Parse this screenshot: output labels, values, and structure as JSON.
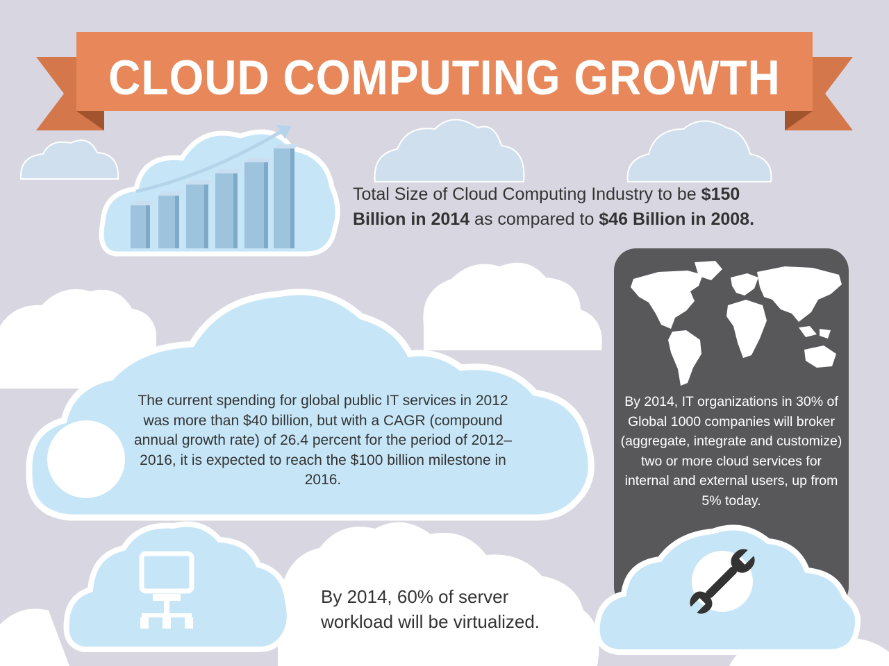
{
  "title": "CLOUD COMPUTING GROWTH",
  "stats": {
    "industry_size": {
      "part1": "Total Size of Cloud Computing Industry to be ",
      "bold1": "$150",
      "bold2": "Billion in 2014",
      "part2": " as compared to ",
      "bold3": "$46 Billion in 2008."
    },
    "it_spending": "The current spending for global public IT services in 2012 was more than $40 billion, but with a CAGR (compound annual growth rate) of 26.4 percent for the period of 2012–2016, it is expected to reach the $100 billion milestone in 2016.",
    "virtualized": "By 2014, 60% of server workload will be virtualized.",
    "broker": "By 2014, IT organizations in 30% of Global 1000 companies will broker (aggregate, integrate and customize) two or more cloud services for internal and external users, up from 5% today."
  },
  "icons": {
    "growth_chart": "bar-chart-growth-icon",
    "world_map": "world-map-icon",
    "computer_network": "computer-network-icon",
    "wrench": "wrench-icon"
  },
  "colors": {
    "background": "#d8d7e1",
    "banner": "#e8885a",
    "banner_dark": "#c8683e",
    "cloud_blue": "#c6e6f7",
    "cloud_white": "#ffffff",
    "dark_panel": "#58585a",
    "text": "#333333"
  }
}
